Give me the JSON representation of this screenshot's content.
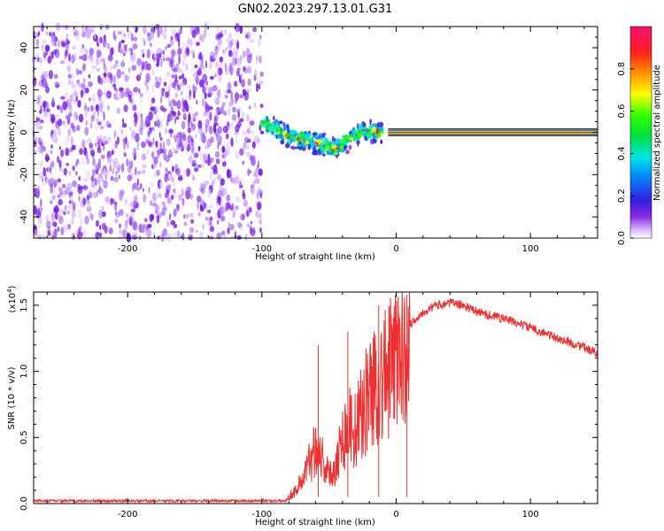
{
  "figure": {
    "title": "GN02.2023.297.13.01.G31"
  },
  "chart_data": [
    {
      "type": "heatmap",
      "title": "GN02.2023.297.13.01.G31",
      "xlabel": "Height of straight line (km)",
      "ylabel": "Frequency (Hz)",
      "xlim": [
        -270,
        150
      ],
      "ylim": [
        -50,
        50
      ],
      "xticks": [
        -200,
        -100,
        0,
        100
      ],
      "yticks": [
        -40,
        -20,
        0,
        20,
        40
      ],
      "colorbar": {
        "label": "Normalized spectral amplitude",
        "range": [
          0,
          1
        ],
        "ticks": [
          "0.0",
          "0.2",
          "0.4",
          "0.6",
          "0.8"
        ]
      },
      "regions": [
        {
          "description": "broadband noise",
          "x": [
            -270,
            -100
          ],
          "freq": [
            -50,
            50
          ],
          "amplitude": 0.15
        },
        {
          "description": "signal track",
          "x": [
            -100,
            -10
          ],
          "center_freq": [
            4,
            -2,
            -4,
            -6,
            -8,
            -3,
            0,
            0
          ],
          "track_x": [
            -97,
            -80,
            -65,
            -55,
            -45,
            -35,
            -25,
            -10
          ],
          "amplitude": 0.6
        },
        {
          "description": "steady carrier line",
          "x": [
            0,
            150
          ],
          "freq": [
            -1.5,
            1.5
          ],
          "amplitude": 1.0
        }
      ]
    },
    {
      "type": "line",
      "xlabel": "Height of straight line (km)",
      "ylabel": "SNR (10 * v/v)",
      "y_scale_label": "(x10",
      "y_scale_exponent": "4",
      "y_scale_suffix": ")",
      "xlim": [
        -270,
        150
      ],
      "ylim": [
        0,
        1.6
      ],
      "xticks": [
        -200,
        -100,
        0,
        100
      ],
      "yticks": [
        "0.0",
        "0.5",
        "1.0",
        "1.5"
      ],
      "color": "#ee3030",
      "series": [
        {
          "x": [
            -270,
            -250,
            -200,
            -150,
            -120,
            -100,
            -85,
            -80,
            -75,
            -70,
            -65,
            -60,
            -55,
            -50,
            -45,
            -40,
            -35,
            -30,
            -25,
            -20,
            -15,
            -10,
            -5,
            0,
            10,
            20,
            30,
            40,
            50,
            60,
            80,
            100,
            120,
            140,
            150
          ],
          "values": [
            0.01,
            0.01,
            0.01,
            0.01,
            0.01,
            0.01,
            0.01,
            0.05,
            0.1,
            0.18,
            0.3,
            0.45,
            0.35,
            0.2,
            0.3,
            0.5,
            0.6,
            0.55,
            0.7,
            0.85,
            0.9,
            0.95,
            1.0,
            1.1,
            1.35,
            1.45,
            1.5,
            1.52,
            1.5,
            1.45,
            1.4,
            1.33,
            1.25,
            1.18,
            1.14
          ]
        }
      ],
      "spikes": [
        {
          "x": -58,
          "value": 1.2
        },
        {
          "x": -36,
          "value": 1.3
        },
        {
          "x": -13,
          "value": 1.5
        },
        {
          "x": 8,
          "value": 1.58
        }
      ]
    }
  ]
}
